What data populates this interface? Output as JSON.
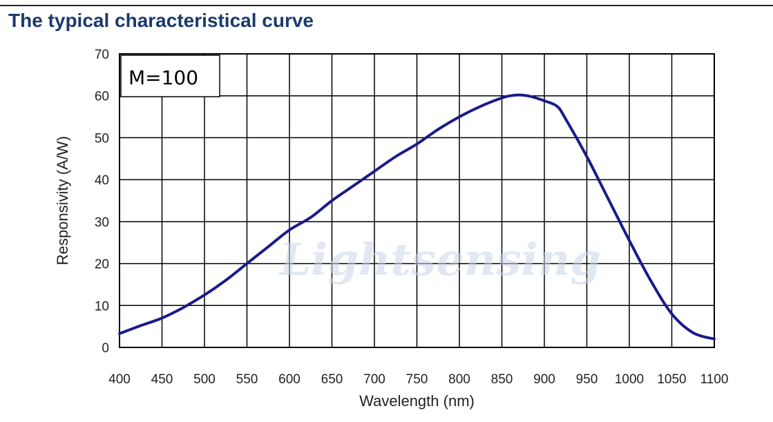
{
  "header": {
    "title": "The typical characteristical curve"
  },
  "chart_data": {
    "type": "line",
    "title": "",
    "xlabel": "Wavelength (nm)",
    "ylabel": "Responsivity (A/W)",
    "xlim": [
      400,
      1100
    ],
    "ylim": [
      0,
      70
    ],
    "x_ticks": [
      400,
      450,
      500,
      550,
      600,
      650,
      700,
      750,
      800,
      850,
      900,
      950,
      1000,
      1050,
      1100
    ],
    "y_ticks": [
      0,
      10,
      20,
      30,
      40,
      50,
      60,
      70
    ],
    "grid": true,
    "annotation": "M=100",
    "watermark": "Lightsensing",
    "series": [
      {
        "name": "M=100",
        "color": "#1a1a8c",
        "x": [
          400,
          425,
          450,
          475,
          500,
          525,
          550,
          575,
          600,
          625,
          650,
          675,
          700,
          725,
          750,
          775,
          800,
          825,
          850,
          860,
          870,
          880,
          890,
          900,
          915,
          925,
          950,
          975,
          1000,
          1025,
          1050,
          1075,
          1100
        ],
        "y": [
          3.3,
          5.2,
          7.0,
          9.5,
          12.5,
          16.0,
          20.0,
          24.0,
          28.0,
          31.0,
          35.0,
          38.5,
          42.0,
          45.5,
          48.5,
          52.0,
          55.0,
          57.5,
          59.5,
          60.0,
          60.2,
          60.0,
          59.5,
          58.8,
          57.5,
          54.5,
          45.5,
          35.5,
          25.5,
          16.0,
          8.0,
          3.5,
          2.0
        ]
      }
    ]
  }
}
